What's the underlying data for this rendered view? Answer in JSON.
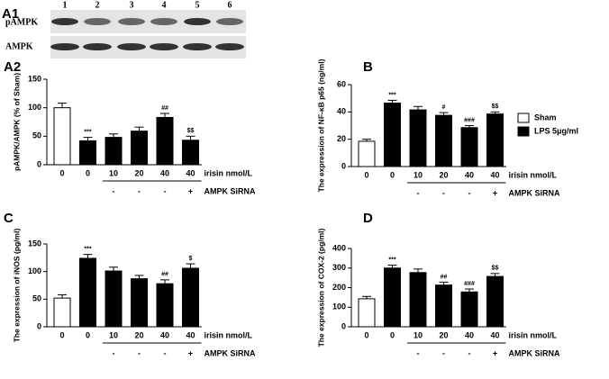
{
  "blot": {
    "panel": "A1",
    "lanes": [
      "1",
      "2",
      "3",
      "4",
      "5",
      "6"
    ],
    "rows": [
      "pAMPK",
      "AMPK"
    ]
  },
  "legend": [
    {
      "name": "Sham",
      "color": "#ffffff"
    },
    {
      "name": "LPS 5μg/ml",
      "color": "#000000"
    }
  ],
  "chart_data": [
    {
      "type": "bar",
      "panel": "A2",
      "y_label": "pAMPK/AMPK (% of Sham)",
      "categories": [
        "0",
        "0",
        "10",
        "20",
        "40",
        "40"
      ],
      "values": [
        100,
        42,
        48,
        59,
        83,
        43
      ],
      "errors": [
        8,
        6,
        6,
        7,
        7,
        7
      ],
      "colors": [
        "#ffffff",
        "#000000",
        "#000000",
        "#000000",
        "#000000",
        "#000000"
      ],
      "annotations": [
        null,
        "***",
        null,
        null,
        "##",
        "$$"
      ],
      "row_labels": [
        "irisin nmol/L",
        "AMPK SiRNA"
      ],
      "sirna": [
        "-",
        "-",
        "-",
        "+"
      ],
      "ylim": [
        0,
        150
      ],
      "yticks": [
        0,
        50,
        100,
        150
      ]
    },
    {
      "type": "bar",
      "panel": "B",
      "y_label": "The expression of NF-κB p65 (ng/ml)",
      "categories": [
        "0",
        "0",
        "10",
        "20",
        "40",
        "40"
      ],
      "values": [
        18.5,
        46.5,
        41.5,
        37.5,
        28.5,
        38.5
      ],
      "errors": [
        1.5,
        2,
        2.5,
        2,
        1.5,
        1.5
      ],
      "colors": [
        "#ffffff",
        "#000000",
        "#000000",
        "#000000",
        "#000000",
        "#000000"
      ],
      "annotations": [
        null,
        "***",
        null,
        "#",
        "###",
        "$$"
      ],
      "row_labels": [
        "irisin nmol/L",
        "AMPK SiRNA"
      ],
      "sirna": [
        "-",
        "-",
        "-",
        "+"
      ],
      "ylim": [
        0,
        60
      ],
      "yticks": [
        0,
        20,
        40,
        60
      ]
    },
    {
      "type": "bar",
      "panel": "C",
      "y_label": "The expression of iNOS (pg/ml)",
      "categories": [
        "0",
        "0",
        "10",
        "20",
        "40",
        "40"
      ],
      "values": [
        52,
        124,
        101,
        87,
        78,
        106
      ],
      "errors": [
        6,
        7,
        7,
        6,
        7,
        8
      ],
      "colors": [
        "#ffffff",
        "#000000",
        "#000000",
        "#000000",
        "#000000",
        "#000000"
      ],
      "annotations": [
        null,
        "***",
        null,
        null,
        "##",
        "$"
      ],
      "row_labels": [
        "irisin nmol/L",
        "AMPK SiRNA"
      ],
      "sirna": [
        "-",
        "-",
        "-",
        "+"
      ],
      "ylim": [
        0,
        150
      ],
      "yticks": [
        0,
        50,
        100,
        150
      ]
    },
    {
      "type": "bar",
      "panel": "D",
      "y_label": "The expression of COX-2 (pg/ml)",
      "categories": [
        "0",
        "0",
        "10",
        "20",
        "40",
        "40"
      ],
      "values": [
        143,
        300,
        277,
        213,
        178,
        257
      ],
      "errors": [
        12,
        15,
        18,
        15,
        15,
        15
      ],
      "colors": [
        "#ffffff",
        "#000000",
        "#000000",
        "#000000",
        "#000000",
        "#000000"
      ],
      "annotations": [
        null,
        "***",
        null,
        "##",
        "###",
        "$$"
      ],
      "row_labels": [
        "irisin nmol/L",
        "AMPK SiRNA"
      ],
      "sirna": [
        "-",
        "-",
        "-",
        "+"
      ],
      "ylim": [
        0,
        400
      ],
      "yticks": [
        0,
        100,
        200,
        300,
        400
      ]
    }
  ]
}
